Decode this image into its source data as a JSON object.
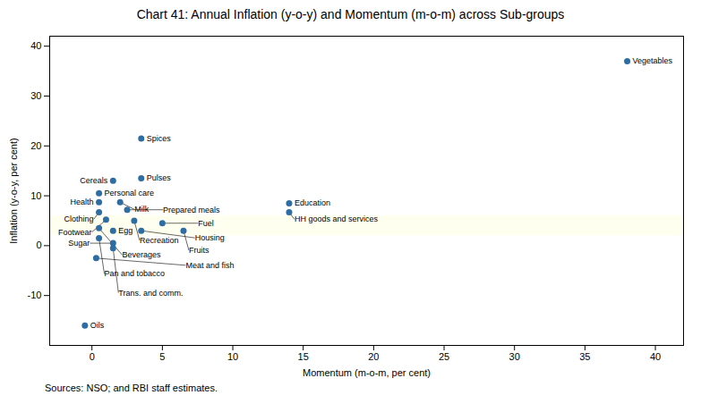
{
  "chart_data": {
    "type": "scatter",
    "title": "Chart 41: Annual Inflation (y-o-y) and Momentum (m-o-m) across Sub-groups",
    "xlabel": "Momentum (m-o-m, per cent)",
    "ylabel": "Inflation (y-o-y, per cent)",
    "source": "Sources: NSO; and RBI staff estimates.",
    "xlim": [
      -3,
      42
    ],
    "ylim": [
      -20,
      42
    ],
    "xticks": [
      0,
      5,
      10,
      15,
      20,
      25,
      30,
      35,
      40
    ],
    "yticks": [
      -10,
      0,
      10,
      20,
      30,
      40
    ],
    "color": "#2e6da4",
    "grid": false,
    "band": {
      "ymin": 2,
      "ymax": 6,
      "color": "#fffff0"
    },
    "points": [
      {
        "label": "Vegetables",
        "x": 38.0,
        "y": 37.0
      },
      {
        "label": "Spices",
        "x": 3.5,
        "y": 21.5
      },
      {
        "label": "Cereals",
        "x": 1.5,
        "y": 13.0
      },
      {
        "label": "Pulses",
        "x": 3.5,
        "y": 13.5
      },
      {
        "label": "Personal care",
        "x": 0.5,
        "y": 10.5
      },
      {
        "label": "Health",
        "x": 0.5,
        "y": 8.7
      },
      {
        "label": "Milk",
        "x": 2.0,
        "y": 8.7
      },
      {
        "label": "Clothing",
        "x": 0.5,
        "y": 6.7
      },
      {
        "label": "Prepared meals",
        "x": 2.5,
        "y": 7.2
      },
      {
        "label": "Education",
        "x": 14.0,
        "y": 8.5
      },
      {
        "label": "HH goods and services",
        "x": 14.0,
        "y": 6.7
      },
      {
        "label": "Footwear",
        "x": 1.0,
        "y": 5.2
      },
      {
        "label": "Recreation",
        "x": 3.0,
        "y": 5.0
      },
      {
        "label": "Fuel",
        "x": 5.0,
        "y": 4.5
      },
      {
        "label": "Beverages",
        "x": 0.5,
        "y": 3.5
      },
      {
        "label": "Egg",
        "x": 1.5,
        "y": 3.0
      },
      {
        "label": "Housing",
        "x": 3.5,
        "y": 3.0
      },
      {
        "label": "Fruits",
        "x": 6.5,
        "y": 3.0
      },
      {
        "label": "Pan and tobacco",
        "x": 0.5,
        "y": 1.5
      },
      {
        "label": "Sugar",
        "x": 1.5,
        "y": 0.5
      },
      {
        "label": "Trans. and comm.",
        "x": 1.5,
        "y": -0.5
      },
      {
        "label": "Meat and fish",
        "x": 0.3,
        "y": -2.5
      },
      {
        "label": "Oils",
        "x": -0.5,
        "y": -16.0
      }
    ]
  }
}
